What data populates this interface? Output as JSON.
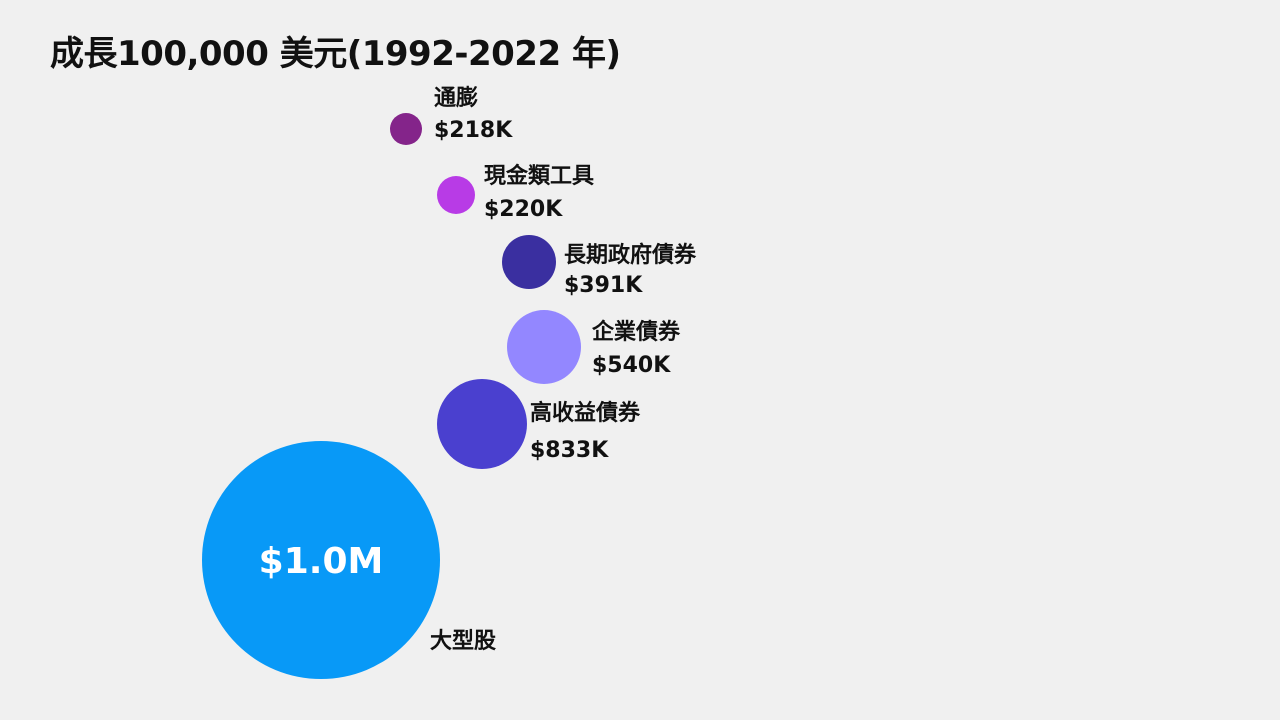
{
  "title": "成長100,000 美元(1992-2022 年)",
  "chart_data": {
    "type": "bubble",
    "title": "成長100,000 美元(1992-2022 年)",
    "unit": "USD",
    "series": [
      {
        "name": "通膨",
        "value": 218000,
        "label": "$218K",
        "color": "#84248a"
      },
      {
        "name": "現金類工具",
        "value": 220000,
        "label": "$220K",
        "color": "#b83be6"
      },
      {
        "name": "長期政府債券",
        "value": 391000,
        "label": "$391K",
        "color": "#3a2fa0"
      },
      {
        "name": "企業債券",
        "value": 540000,
        "label": "$540K",
        "color": "#9387ff"
      },
      {
        "name": "高收益債券",
        "value": 833000,
        "label": "$833K",
        "color": "#4a40cf"
      },
      {
        "name": "大型股",
        "value": 1000000,
        "label": "$1.0M",
        "color": "#0899f7"
      }
    ]
  }
}
